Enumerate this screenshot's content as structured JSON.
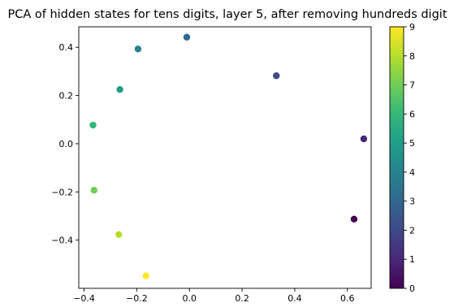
{
  "chart_data": {
    "type": "scatter",
    "title": "PCA of hidden states for tens digits, layer 5, after removing hundreds digit",
    "xlabel": "",
    "ylabel": "",
    "xlim": [
      -0.42,
      0.69
    ],
    "ylim": [
      -0.6,
      0.485
    ],
    "x_ticks": [
      -0.4,
      -0.2,
      0.0,
      0.2,
      0.4,
      0.6
    ],
    "x_tick_labels": [
      "−0.4",
      "−0.2",
      "0.0",
      "0.2",
      "0.4",
      "0.6"
    ],
    "y_ticks": [
      -0.4,
      -0.2,
      0.0,
      0.2,
      0.4
    ],
    "y_tick_labels": [
      "−0.4",
      "−0.2",
      "0.0",
      "0.2",
      "0.4"
    ],
    "grid": false,
    "colormap": "viridis",
    "colorbar": {
      "min": 0,
      "max": 9,
      "ticks": [
        0,
        1,
        2,
        3,
        4,
        5,
        6,
        7,
        8,
        9
      ],
      "tick_labels": [
        "0",
        "1",
        "2",
        "3",
        "4",
        "5",
        "6",
        "7",
        "8",
        "9"
      ],
      "colors": [
        "#440154",
        "#482878",
        "#3e4989",
        "#31688e",
        "#26828e",
        "#1f9e89",
        "#35b779",
        "#6ece58",
        "#b5de2b",
        "#fde725"
      ]
    },
    "points": [
      {
        "x": 0.625,
        "y": -0.313,
        "value": 0
      },
      {
        "x": 0.662,
        "y": 0.02,
        "value": 1
      },
      {
        "x": 0.33,
        "y": 0.282,
        "value": 2
      },
      {
        "x": -0.01,
        "y": 0.442,
        "value": 3
      },
      {
        "x": -0.195,
        "y": 0.393,
        "value": 4
      },
      {
        "x": -0.264,
        "y": 0.225,
        "value": 5
      },
      {
        "x": -0.366,
        "y": 0.077,
        "value": 6
      },
      {
        "x": -0.362,
        "y": -0.193,
        "value": 7
      },
      {
        "x": -0.268,
        "y": -0.377,
        "value": 8
      },
      {
        "x": -0.165,
        "y": -0.548,
        "value": 9
      }
    ]
  }
}
